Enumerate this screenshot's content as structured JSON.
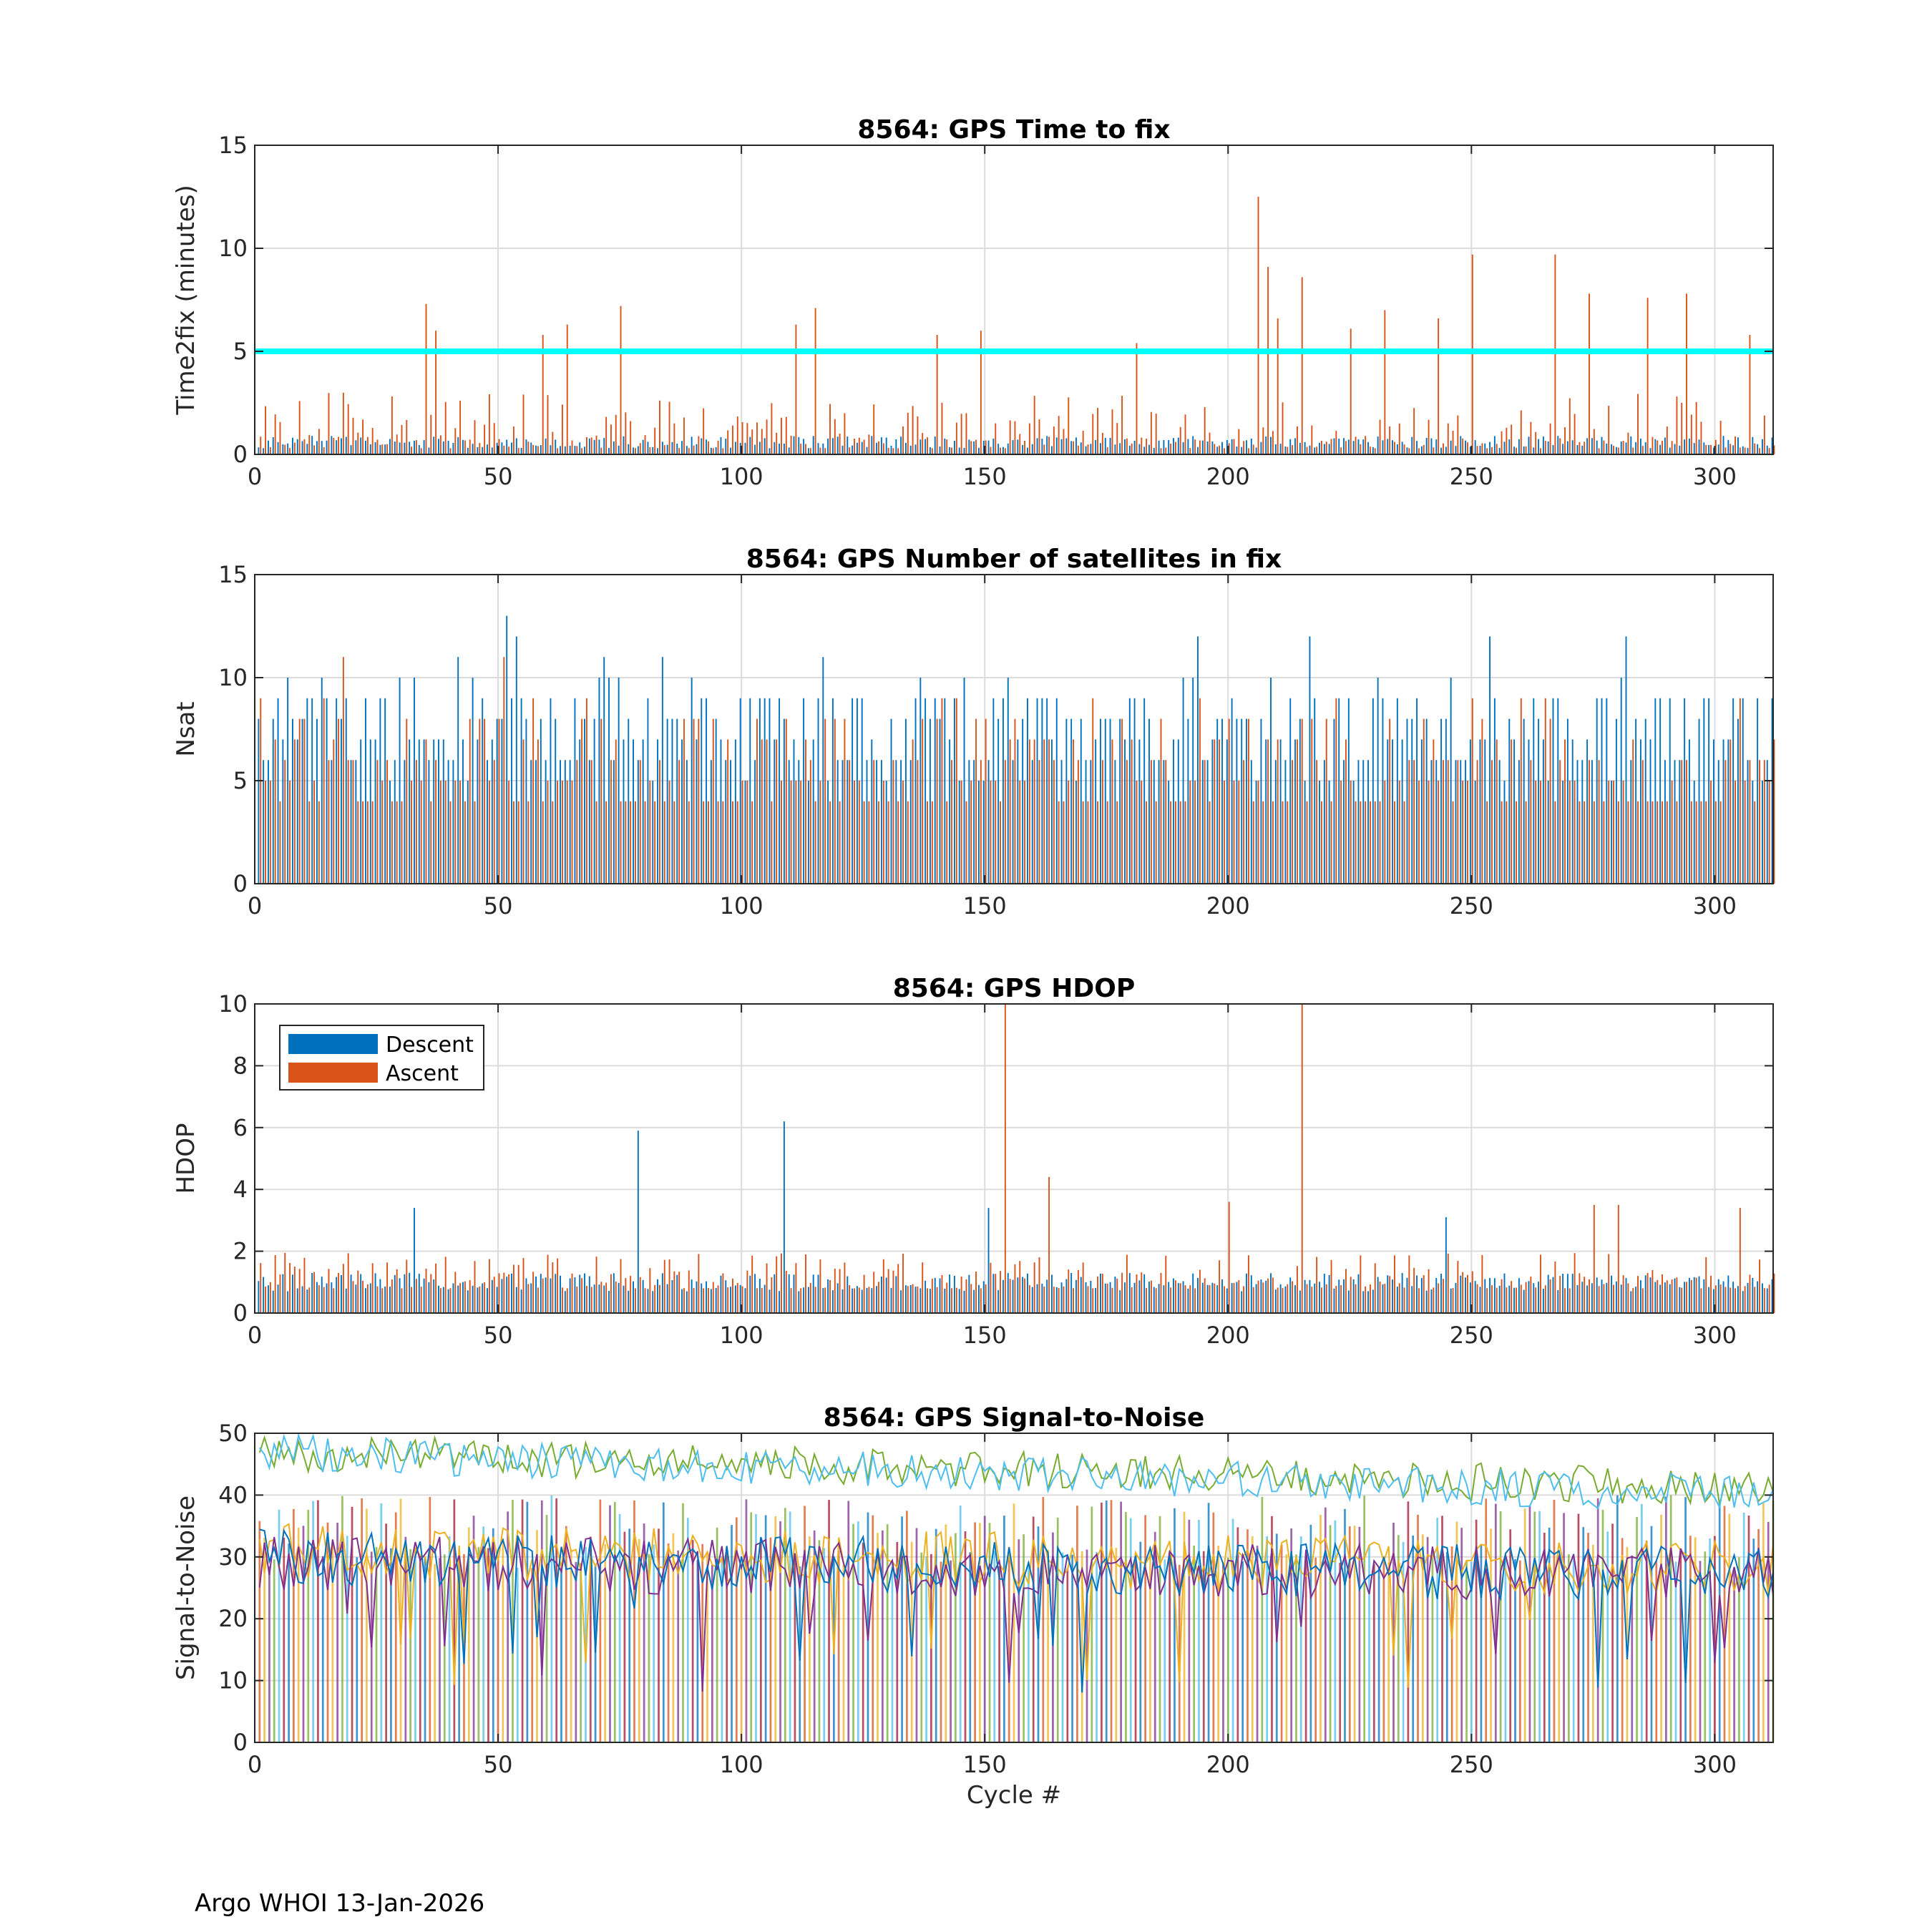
{
  "footer": "Argo WHOI 13-Jan-2026",
  "colors": {
    "descent": "#0072bd",
    "ascent": "#d95319",
    "threshold": "#00ffff",
    "snr": [
      "#0072bd",
      "#d95319",
      "#edb120",
      "#7e2f8e",
      "#77ac30",
      "#4dbeee",
      "#a2142f"
    ]
  },
  "chart_data": [
    {
      "type": "bar",
      "title": "8564: GPS Time to fix",
      "xlabel": "",
      "ylabel": "Time2fix (minutes)",
      "xlim": [
        0,
        312
      ],
      "ylim": [
        0,
        15
      ],
      "xticks": [
        0,
        50,
        100,
        150,
        200,
        250,
        300
      ],
      "yticks": [
        0,
        5,
        10,
        15
      ],
      "reference_line": 5,
      "highlights": [
        {
          "x": 35,
          "ascent": 7.3
        },
        {
          "x": 37,
          "ascent": 6.0
        },
        {
          "x": 59,
          "ascent": 5.8
        },
        {
          "x": 64,
          "ascent": 6.3
        },
        {
          "x": 75,
          "ascent": 7.2
        },
        {
          "x": 111,
          "ascent": 6.3
        },
        {
          "x": 115,
          "ascent": 7.1
        },
        {
          "x": 140,
          "ascent": 5.8
        },
        {
          "x": 149,
          "ascent": 6.0
        },
        {
          "x": 181,
          "ascent": 5.4
        },
        {
          "x": 206,
          "ascent": 12.5
        },
        {
          "x": 208,
          "ascent": 9.1
        },
        {
          "x": 210,
          "ascent": 6.6
        },
        {
          "x": 215,
          "ascent": 8.6
        },
        {
          "x": 225,
          "ascent": 6.1
        },
        {
          "x": 232,
          "ascent": 7.0
        },
        {
          "x": 243,
          "ascent": 6.6
        },
        {
          "x": 250,
          "ascent": 9.7
        },
        {
          "x": 267,
          "ascent": 9.7
        },
        {
          "x": 274,
          "ascent": 7.8
        },
        {
          "x": 286,
          "ascent": 7.6
        },
        {
          "x": 294,
          "ascent": 7.8
        },
        {
          "x": 307,
          "ascent": 5.8
        }
      ],
      "typical": {
        "descent": [
          0.3,
          0.9
        ],
        "ascent": [
          0.3,
          3.0
        ]
      }
    },
    {
      "type": "bar",
      "title": "8564: GPS Number of satellites in fix",
      "xlabel": "",
      "ylabel": "Nsat",
      "xlim": [
        0,
        312
      ],
      "ylim": [
        0,
        15
      ],
      "xticks": [
        0,
        50,
        100,
        150,
        200,
        250,
        300
      ],
      "yticks": [
        0,
        5,
        10,
        15
      ],
      "highlights": [
        {
          "x": 18,
          "ascent": 11
        },
        {
          "x": 42,
          "descent": 11
        },
        {
          "x": 52,
          "descent": 13
        },
        {
          "x": 54,
          "descent": 12
        },
        {
          "x": 51,
          "ascent": 11
        },
        {
          "x": 72,
          "descent": 11
        },
        {
          "x": 84,
          "descent": 11
        },
        {
          "x": 117,
          "descent": 11
        },
        {
          "x": 194,
          "descent": 12
        },
        {
          "x": 217,
          "descent": 12
        },
        {
          "x": 254,
          "descent": 12
        },
        {
          "x": 282,
          "descent": 12
        }
      ],
      "typical": {
        "descent": [
          5,
          10
        ],
        "ascent": [
          4,
          9
        ]
      }
    },
    {
      "type": "bar",
      "title": "8564: GPS HDOP",
      "xlabel": "",
      "ylabel": "HDOP",
      "xlim": [
        0,
        312
      ],
      "ylim": [
        0,
        10
      ],
      "xticks": [
        0,
        50,
        100,
        150,
        200,
        250,
        300
      ],
      "yticks": [
        0,
        2,
        4,
        6,
        8,
        10
      ],
      "legend": {
        "entries": [
          "Descent",
          "Ascent"
        ],
        "location": "top-left"
      },
      "highlights": [
        {
          "x": 33,
          "descent": 3.4
        },
        {
          "x": 79,
          "descent": 5.9
        },
        {
          "x": 109,
          "descent": 6.2
        },
        {
          "x": 151,
          "descent": 3.4
        },
        {
          "x": 154,
          "ascent": 10.0
        },
        {
          "x": 163,
          "ascent": 4.4
        },
        {
          "x": 215,
          "ascent": 10.0
        },
        {
          "x": 200,
          "ascent": 3.6
        },
        {
          "x": 245,
          "descent": 3.1
        },
        {
          "x": 275,
          "ascent": 3.5
        },
        {
          "x": 280,
          "ascent": 3.5
        },
        {
          "x": 305,
          "ascent": 3.4
        }
      ],
      "typical": {
        "descent": [
          0.7,
          1.3
        ],
        "ascent": [
          0.8,
          2.0
        ]
      }
    },
    {
      "type": "line",
      "title": "8564: GPS Signal-to-Noise",
      "xlabel": "Cycle #",
      "ylabel": "Signal-to-Noise",
      "xlim": [
        0,
        312
      ],
      "ylim": [
        0,
        50
      ],
      "xticks": [
        0,
        50,
        100,
        150,
        200,
        250,
        300
      ],
      "yticks": [
        0,
        10,
        20,
        30,
        40,
        50
      ],
      "series_levels": [
        {
          "name": "high-1",
          "start": 47,
          "end": 41
        },
        {
          "name": "high-2",
          "start": 47,
          "end": 40
        },
        {
          "name": "mid-1",
          "start": 31,
          "end": 28
        },
        {
          "name": "mid-2",
          "start": 29,
          "end": 27
        },
        {
          "name": "mid-3",
          "start": 30,
          "end": 27
        }
      ],
      "bar_range": [
        28,
        40
      ]
    }
  ]
}
